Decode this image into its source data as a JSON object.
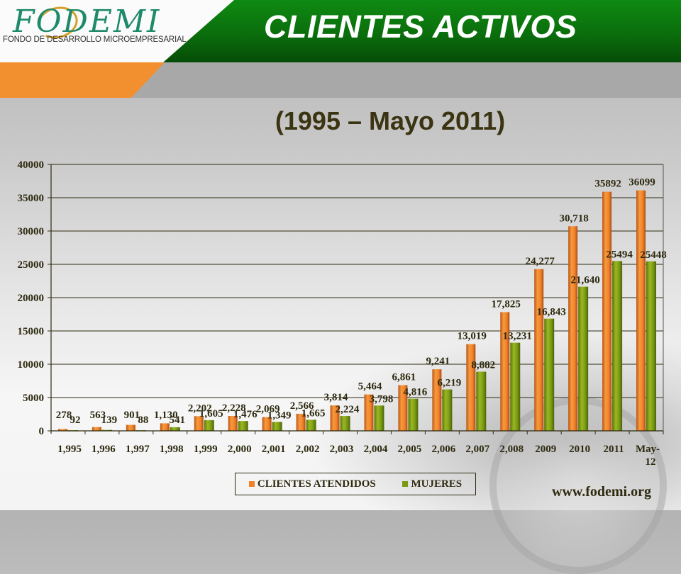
{
  "header": {
    "logo_word": "FODEMI",
    "logo_subtitle": "FONDO DE DESARROLLO MICROEMPRESARIAL",
    "title": "CLIENTES ACTIVOS"
  },
  "subtitle": "(1995 – Mayo 2011)",
  "legend": {
    "series1": "CLIENTES ATENDIDOS",
    "series2": "MUJERES"
  },
  "footer": {
    "website": "www.fodemi.org"
  },
  "colors": {
    "series1": "#f0822a",
    "series2": "#7a9a14",
    "header_green": "#0a6e0c",
    "header_orange": "#f28f2e",
    "text_dark": "#2e2a10"
  },
  "chart_data": {
    "type": "bar",
    "title": "CLIENTES ACTIVOS",
    "subtitle": "(1995 – Mayo 2011)",
    "xlabel": "",
    "ylabel": "",
    "ylim": [
      0,
      40000
    ],
    "yticks": [
      0,
      5000,
      10000,
      15000,
      20000,
      25000,
      30000,
      35000,
      40000
    ],
    "grid": true,
    "legend_position": "bottom",
    "categories": [
      "1,995",
      "1,996",
      "1,997",
      "1,998",
      "1,999",
      "2,000",
      "2,001",
      "2,002",
      "2,003",
      "2,004",
      "2,005",
      "2,006",
      "2,007",
      "2,008",
      "2009",
      "2010",
      "2011",
      "May-12"
    ],
    "series": [
      {
        "name": "CLIENTES ATENDIDOS",
        "values": [
          278,
          563,
          901,
          1130,
          2202,
          2228,
          2069,
          2566,
          3814,
          5464,
          6861,
          9241,
          13019,
          17825,
          24277,
          30718,
          35892,
          36099
        ],
        "labels": [
          "278",
          "563",
          "901",
          "1,130",
          "2,202",
          "2,228",
          "2,069",
          "2,566",
          "3,814",
          "5,464",
          "6,861",
          "9,241",
          "13,019",
          "17,825",
          "24,277",
          "30,718",
          "35892",
          "36099"
        ]
      },
      {
        "name": "MUJERES",
        "values": [
          92,
          139,
          88,
          541,
          1605,
          1476,
          1349,
          1665,
          2224,
          3798,
          4816,
          6219,
          8882,
          13231,
          16843,
          21640,
          25494,
          25448
        ],
        "labels": [
          "92",
          "139",
          "88",
          "541",
          "1,605",
          "1,476",
          "1,349",
          "1,665",
          "2,224",
          "3,798",
          "4,816",
          "6,219",
          "8,882",
          "13,231",
          "16,843",
          "21,640",
          "25494",
          "25448"
        ]
      }
    ]
  }
}
